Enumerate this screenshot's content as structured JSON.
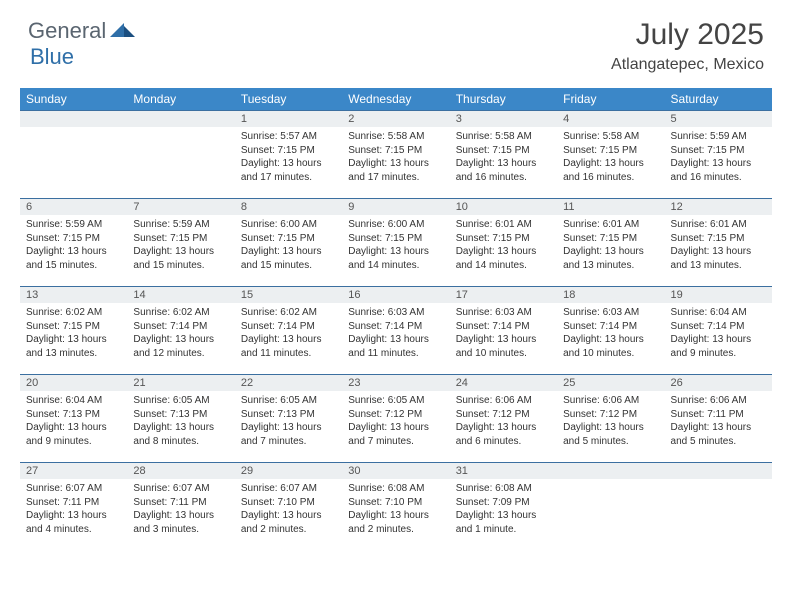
{
  "brand": {
    "general": "General",
    "blue": "Blue"
  },
  "title": "July 2025",
  "location": "Atlangatepec, Mexico",
  "colors": {
    "header_bg": "#3b87c8",
    "header_text": "#ffffff",
    "daynum_bg": "#eceff1",
    "row_border": "#3b6fa0",
    "logo_gray": "#5a6570",
    "logo_blue": "#2f6fa8"
  },
  "weekdays": [
    "Sunday",
    "Monday",
    "Tuesday",
    "Wednesday",
    "Thursday",
    "Friday",
    "Saturday"
  ],
  "cells": [
    {
      "day": "",
      "lines": []
    },
    {
      "day": "",
      "lines": []
    },
    {
      "day": "1",
      "lines": [
        "Sunrise: 5:57 AM",
        "Sunset: 7:15 PM",
        "Daylight: 13 hours and 17 minutes."
      ]
    },
    {
      "day": "2",
      "lines": [
        "Sunrise: 5:58 AM",
        "Sunset: 7:15 PM",
        "Daylight: 13 hours and 17 minutes."
      ]
    },
    {
      "day": "3",
      "lines": [
        "Sunrise: 5:58 AM",
        "Sunset: 7:15 PM",
        "Daylight: 13 hours and 16 minutes."
      ]
    },
    {
      "day": "4",
      "lines": [
        "Sunrise: 5:58 AM",
        "Sunset: 7:15 PM",
        "Daylight: 13 hours and 16 minutes."
      ]
    },
    {
      "day": "5",
      "lines": [
        "Sunrise: 5:59 AM",
        "Sunset: 7:15 PM",
        "Daylight: 13 hours and 16 minutes."
      ]
    },
    {
      "day": "6",
      "lines": [
        "Sunrise: 5:59 AM",
        "Sunset: 7:15 PM",
        "Daylight: 13 hours and 15 minutes."
      ]
    },
    {
      "day": "7",
      "lines": [
        "Sunrise: 5:59 AM",
        "Sunset: 7:15 PM",
        "Daylight: 13 hours and 15 minutes."
      ]
    },
    {
      "day": "8",
      "lines": [
        "Sunrise: 6:00 AM",
        "Sunset: 7:15 PM",
        "Daylight: 13 hours and 15 minutes."
      ]
    },
    {
      "day": "9",
      "lines": [
        "Sunrise: 6:00 AM",
        "Sunset: 7:15 PM",
        "Daylight: 13 hours and 14 minutes."
      ]
    },
    {
      "day": "10",
      "lines": [
        "Sunrise: 6:01 AM",
        "Sunset: 7:15 PM",
        "Daylight: 13 hours and 14 minutes."
      ]
    },
    {
      "day": "11",
      "lines": [
        "Sunrise: 6:01 AM",
        "Sunset: 7:15 PM",
        "Daylight: 13 hours and 13 minutes."
      ]
    },
    {
      "day": "12",
      "lines": [
        "Sunrise: 6:01 AM",
        "Sunset: 7:15 PM",
        "Daylight: 13 hours and 13 minutes."
      ]
    },
    {
      "day": "13",
      "lines": [
        "Sunrise: 6:02 AM",
        "Sunset: 7:15 PM",
        "Daylight: 13 hours and 13 minutes."
      ]
    },
    {
      "day": "14",
      "lines": [
        "Sunrise: 6:02 AM",
        "Sunset: 7:14 PM",
        "Daylight: 13 hours and 12 minutes."
      ]
    },
    {
      "day": "15",
      "lines": [
        "Sunrise: 6:02 AM",
        "Sunset: 7:14 PM",
        "Daylight: 13 hours and 11 minutes."
      ]
    },
    {
      "day": "16",
      "lines": [
        "Sunrise: 6:03 AM",
        "Sunset: 7:14 PM",
        "Daylight: 13 hours and 11 minutes."
      ]
    },
    {
      "day": "17",
      "lines": [
        "Sunrise: 6:03 AM",
        "Sunset: 7:14 PM",
        "Daylight: 13 hours and 10 minutes."
      ]
    },
    {
      "day": "18",
      "lines": [
        "Sunrise: 6:03 AM",
        "Sunset: 7:14 PM",
        "Daylight: 13 hours and 10 minutes."
      ]
    },
    {
      "day": "19",
      "lines": [
        "Sunrise: 6:04 AM",
        "Sunset: 7:14 PM",
        "Daylight: 13 hours and 9 minutes."
      ]
    },
    {
      "day": "20",
      "lines": [
        "Sunrise: 6:04 AM",
        "Sunset: 7:13 PM",
        "Daylight: 13 hours and 9 minutes."
      ]
    },
    {
      "day": "21",
      "lines": [
        "Sunrise: 6:05 AM",
        "Sunset: 7:13 PM",
        "Daylight: 13 hours and 8 minutes."
      ]
    },
    {
      "day": "22",
      "lines": [
        "Sunrise: 6:05 AM",
        "Sunset: 7:13 PM",
        "Daylight: 13 hours and 7 minutes."
      ]
    },
    {
      "day": "23",
      "lines": [
        "Sunrise: 6:05 AM",
        "Sunset: 7:12 PM",
        "Daylight: 13 hours and 7 minutes."
      ]
    },
    {
      "day": "24",
      "lines": [
        "Sunrise: 6:06 AM",
        "Sunset: 7:12 PM",
        "Daylight: 13 hours and 6 minutes."
      ]
    },
    {
      "day": "25",
      "lines": [
        "Sunrise: 6:06 AM",
        "Sunset: 7:12 PM",
        "Daylight: 13 hours and 5 minutes."
      ]
    },
    {
      "day": "26",
      "lines": [
        "Sunrise: 6:06 AM",
        "Sunset: 7:11 PM",
        "Daylight: 13 hours and 5 minutes."
      ]
    },
    {
      "day": "27",
      "lines": [
        "Sunrise: 6:07 AM",
        "Sunset: 7:11 PM",
        "Daylight: 13 hours and 4 minutes."
      ]
    },
    {
      "day": "28",
      "lines": [
        "Sunrise: 6:07 AM",
        "Sunset: 7:11 PM",
        "Daylight: 13 hours and 3 minutes."
      ]
    },
    {
      "day": "29",
      "lines": [
        "Sunrise: 6:07 AM",
        "Sunset: 7:10 PM",
        "Daylight: 13 hours and 2 minutes."
      ]
    },
    {
      "day": "30",
      "lines": [
        "Sunrise: 6:08 AM",
        "Sunset: 7:10 PM",
        "Daylight: 13 hours and 2 minutes."
      ]
    },
    {
      "day": "31",
      "lines": [
        "Sunrise: 6:08 AM",
        "Sunset: 7:09 PM",
        "Daylight: 13 hours and 1 minute."
      ]
    },
    {
      "day": "",
      "lines": []
    },
    {
      "day": "",
      "lines": []
    }
  ]
}
